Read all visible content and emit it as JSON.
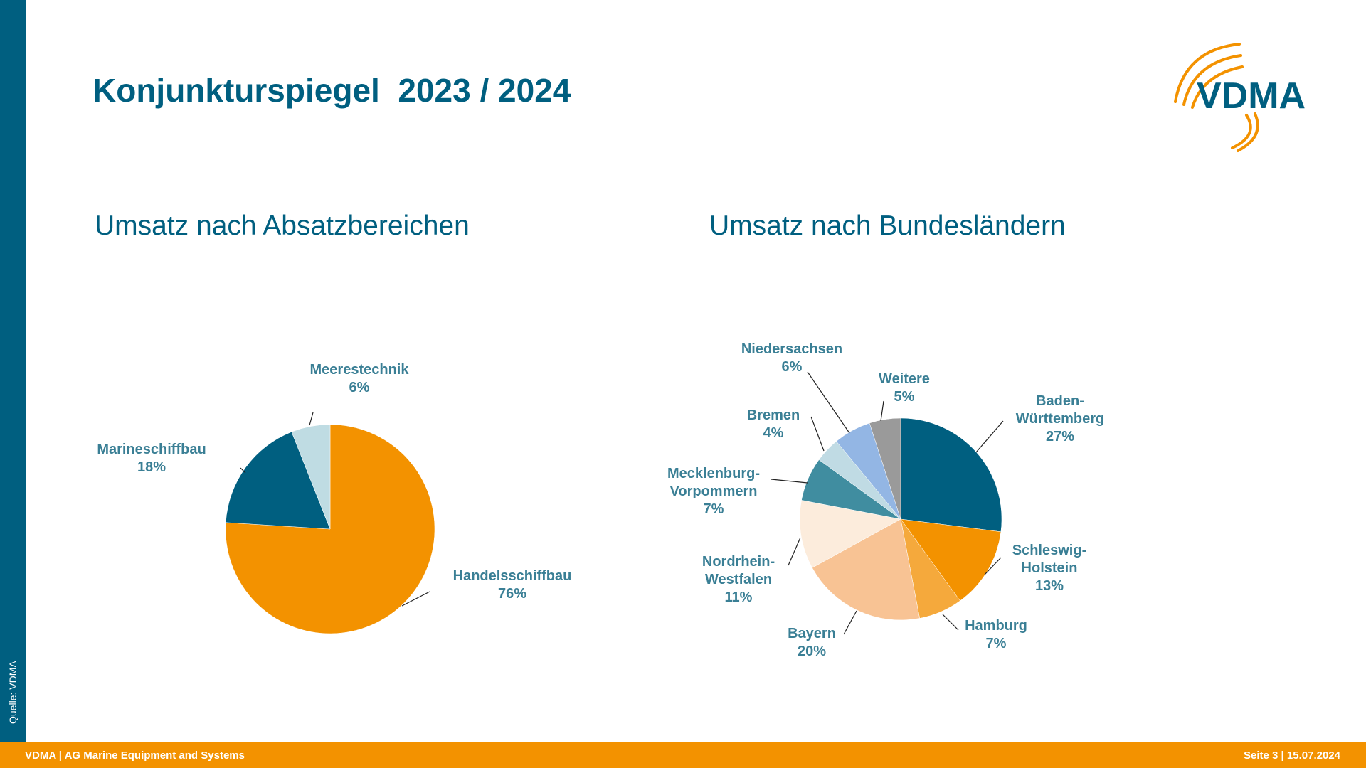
{
  "header": {
    "title": "Konjunkturspiegel  2023 / 2024"
  },
  "logo": {
    "text": "VDMA"
  },
  "sidebar": {
    "source": "Quelle: VDMA"
  },
  "footer": {
    "left": "VDMA | AG Marine Equipment and Systems",
    "right": "Seite 3 | 15.07.2024"
  },
  "colors": {
    "primary": "#005f80",
    "accent": "#f39200",
    "label": "#3a7f95"
  },
  "chart_data": [
    {
      "type": "pie",
      "title": "Umsatz nach Absatzbereichen",
      "start_angle_deg": 0,
      "direction": "clockwise",
      "categories": [
        "Handelsschiffbau",
        "Marineschiffbau",
        "Meerestechnik"
      ],
      "values": [
        76,
        18,
        6
      ],
      "value_labels": [
        "76%",
        "18%",
        "6%"
      ],
      "colors": [
        "#f39200",
        "#005f80",
        "#bfdce3"
      ]
    },
    {
      "type": "pie",
      "title": "Umsatz nach Bundesländern",
      "start_angle_deg": 0,
      "direction": "clockwise",
      "categories": [
        "Baden-Württemberg",
        "Schleswig-Holstein",
        "Hamburg",
        "Bayern",
        "Nordrhein-Westfalen",
        "Mecklenburg-Vorpommern",
        "Bremen",
        "Niedersachsen",
        "Weitere"
      ],
      "values": [
        27,
        13,
        7,
        20,
        11,
        7,
        4,
        6,
        5
      ],
      "value_labels": [
        "27%",
        "13%",
        "7%",
        "20%",
        "11%",
        "7%",
        "4%",
        "6%",
        "5%"
      ],
      "colors": [
        "#005f80",
        "#f39200",
        "#f5a93c",
        "#f8c394",
        "#fcecdc",
        "#408da0",
        "#c0dbe4",
        "#93b6e4",
        "#9a9a9a"
      ]
    }
  ]
}
